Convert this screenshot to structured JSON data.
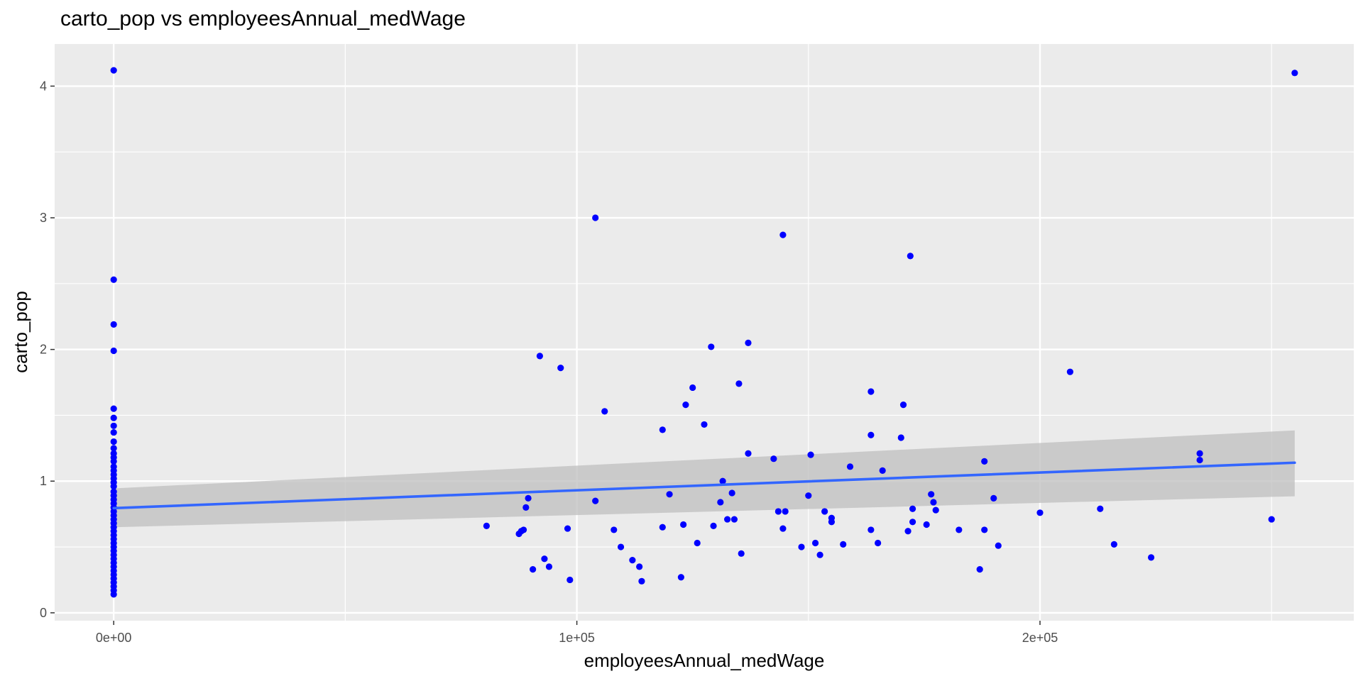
{
  "chart_data": {
    "type": "scatter",
    "title": "carto_pop vs employeesAnnual_medWage",
    "xlabel": "employeesAnnual_medWage",
    "ylabel": "carto_pop",
    "xlim": [
      -12750,
      267750
    ],
    "ylim": [
      -0.06,
      4.32
    ],
    "x_ticks": [
      0,
      100000,
      200000
    ],
    "x_tick_labels": [
      "0e+00",
      "1e+05",
      "2e+05"
    ],
    "y_ticks": [
      0,
      1,
      2,
      3,
      4
    ],
    "y_tick_labels": [
      "0",
      "1",
      "2",
      "3",
      "4"
    ],
    "grid": true,
    "background": "#ebebeb",
    "point_color": "#0000ff",
    "fit_color": "#3366ff",
    "band_color": "#bfbfbf",
    "fit_line": {
      "x": [
        0,
        255000
      ],
      "y": [
        0.795,
        1.14
      ]
    },
    "confidence_band": {
      "x": [
        0,
        255000
      ],
      "lower": [
        0.65,
        0.885
      ],
      "upper": [
        0.945,
        1.385
      ]
    },
    "points": [
      [
        0,
        4.12
      ],
      [
        0,
        2.53
      ],
      [
        0,
        2.19
      ],
      [
        0,
        1.99
      ],
      [
        0,
        1.55
      ],
      [
        0,
        1.48
      ],
      [
        0,
        1.42
      ],
      [
        0,
        1.37
      ],
      [
        0,
        1.3
      ],
      [
        0,
        1.25
      ],
      [
        0,
        1.21
      ],
      [
        0,
        1.18
      ],
      [
        0,
        1.15
      ],
      [
        0,
        1.11
      ],
      [
        0,
        1.08
      ],
      [
        0,
        1.05
      ],
      [
        0,
        1.02
      ],
      [
        0,
        0.99
      ],
      [
        0,
        0.96
      ],
      [
        0,
        0.92
      ],
      [
        0,
        0.89
      ],
      [
        0,
        0.86
      ],
      [
        0,
        0.83
      ],
      [
        0,
        0.8
      ],
      [
        0,
        0.77
      ],
      [
        0,
        0.74
      ],
      [
        0,
        0.71
      ],
      [
        0,
        0.68
      ],
      [
        0,
        0.65
      ],
      [
        0,
        0.62
      ],
      [
        0,
        0.59
      ],
      [
        0,
        0.56
      ],
      [
        0,
        0.53
      ],
      [
        0,
        0.5
      ],
      [
        0,
        0.47
      ],
      [
        0,
        0.44
      ],
      [
        0,
        0.41
      ],
      [
        0,
        0.38
      ],
      [
        0,
        0.35
      ],
      [
        0,
        0.32
      ],
      [
        0,
        0.29
      ],
      [
        0,
        0.26
      ],
      [
        0,
        0.23
      ],
      [
        0,
        0.2
      ],
      [
        0,
        0.17
      ],
      [
        0,
        0.14
      ],
      [
        80500,
        0.66
      ],
      [
        87500,
        0.6
      ],
      [
        88000,
        0.62
      ],
      [
        88500,
        0.63
      ],
      [
        89000,
        0.8
      ],
      [
        89500,
        0.87
      ],
      [
        90500,
        0.33
      ],
      [
        92000,
        1.95
      ],
      [
        93000,
        0.41
      ],
      [
        94000,
        0.35
      ],
      [
        96500,
        1.86
      ],
      [
        98000,
        0.64
      ],
      [
        98500,
        0.25
      ],
      [
        104000,
        3.0
      ],
      [
        104000,
        0.85
      ],
      [
        106000,
        1.53
      ],
      [
        108000,
        0.63
      ],
      [
        109500,
        0.5
      ],
      [
        112000,
        0.4
      ],
      [
        113500,
        0.35
      ],
      [
        114000,
        0.24
      ],
      [
        118500,
        1.39
      ],
      [
        118500,
        0.65
      ],
      [
        120000,
        0.9
      ],
      [
        122500,
        0.27
      ],
      [
        123000,
        0.67
      ],
      [
        123500,
        1.58
      ],
      [
        125000,
        1.71
      ],
      [
        126000,
        0.53
      ],
      [
        127500,
        1.43
      ],
      [
        129000,
        2.02
      ],
      [
        129500,
        0.66
      ],
      [
        131000,
        0.84
      ],
      [
        131500,
        1.0
      ],
      [
        132500,
        0.71
      ],
      [
        133500,
        0.91
      ],
      [
        134000,
        0.71
      ],
      [
        135000,
        1.74
      ],
      [
        135500,
        0.45
      ],
      [
        137000,
        1.21
      ],
      [
        137000,
        2.05
      ],
      [
        142500,
        1.17
      ],
      [
        143500,
        0.77
      ],
      [
        144500,
        2.87
      ],
      [
        144500,
        0.64
      ],
      [
        145000,
        0.77
      ],
      [
        148500,
        0.5
      ],
      [
        150000,
        0.89
      ],
      [
        150500,
        1.2
      ],
      [
        151500,
        0.53
      ],
      [
        152500,
        0.44
      ],
      [
        153500,
        0.77
      ],
      [
        155000,
        0.69
      ],
      [
        155000,
        0.72
      ],
      [
        157500,
        0.52
      ],
      [
        159000,
        1.11
      ],
      [
        163500,
        1.68
      ],
      [
        163500,
        1.35
      ],
      [
        163500,
        0.63
      ],
      [
        165000,
        0.53
      ],
      [
        166000,
        1.08
      ],
      [
        170000,
        1.33
      ],
      [
        170500,
        1.58
      ],
      [
        171500,
        0.62
      ],
      [
        172000,
        2.71
      ],
      [
        172500,
        0.69
      ],
      [
        172500,
        0.79
      ],
      [
        175500,
        0.67
      ],
      [
        176500,
        0.9
      ],
      [
        177000,
        0.84
      ],
      [
        177500,
        0.78
      ],
      [
        182500,
        0.63
      ],
      [
        187000,
        0.33
      ],
      [
        188000,
        1.15
      ],
      [
        188000,
        0.63
      ],
      [
        190000,
        0.87
      ],
      [
        191000,
        0.51
      ],
      [
        200000,
        0.76
      ],
      [
        206500,
        1.83
      ],
      [
        213000,
        0.79
      ],
      [
        216000,
        0.52
      ],
      [
        224000,
        0.42
      ],
      [
        234500,
        1.21
      ],
      [
        234500,
        1.16
      ],
      [
        250000,
        0.71
      ],
      [
        255000,
        4.1
      ]
    ]
  }
}
